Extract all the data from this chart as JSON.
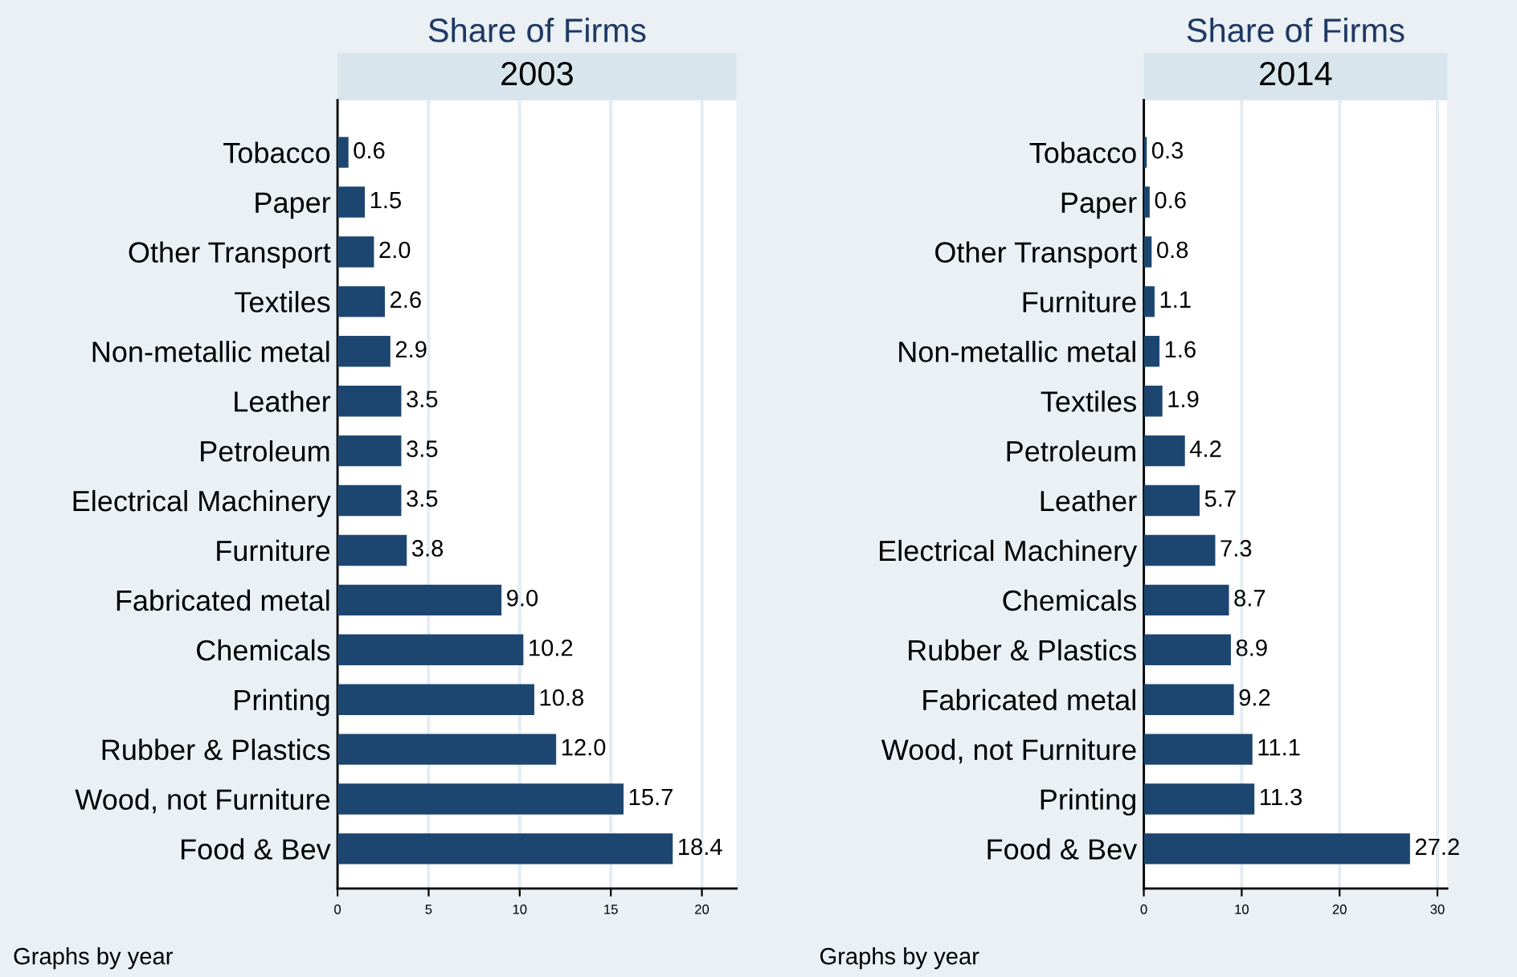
{
  "chart_data": [
    {
      "type": "bar",
      "orientation": "horizontal",
      "title": "Share of Firms",
      "subtitle": "2003",
      "categories": [
        "Tobacco",
        "Paper",
        "Other Transport",
        "Textiles",
        "Non-metallic metal",
        "Leather",
        "Petroleum",
        "Electrical Machinery",
        "Furniture",
        "Fabricated metal",
        "Chemicals",
        "Printing",
        "Rubber & Plastics",
        "Wood, not Furniture",
        "Food & Bev"
      ],
      "values": [
        0.6,
        1.5,
        2.0,
        2.6,
        2.9,
        3.5,
        3.5,
        3.5,
        3.8,
        9.0,
        10.2,
        10.8,
        12.0,
        15.7,
        18.4
      ],
      "color": "#1c4670",
      "xlim": [
        0,
        21.9
      ],
      "xticks": [
        0,
        5,
        10,
        15,
        20
      ],
      "grid": "x",
      "value_labels": [
        "0.6",
        "1.5",
        "2.0",
        "2.6",
        "2.9",
        "3.5",
        "3.5",
        "3.5",
        "3.8",
        "9.0",
        "10.2",
        "10.8",
        "12.0",
        "15.7",
        "18.4"
      ],
      "annotations": [
        "Graphs by year"
      ]
    },
    {
      "type": "bar",
      "orientation": "horizontal",
      "title": "Share of Firms",
      "subtitle": "2014",
      "categories": [
        "Tobacco",
        "Paper",
        "Other Transport",
        "Furniture",
        "Non-metallic metal",
        "Textiles",
        "Petroleum",
        "Leather",
        "Electrical Machinery",
        "Chemicals",
        "Rubber & Plastics",
        "Fabricated metal",
        "Wood, not Furniture",
        "Printing",
        "Food & Bev"
      ],
      "values": [
        0.3,
        0.6,
        0.8,
        1.1,
        1.6,
        1.9,
        4.2,
        5.7,
        7.3,
        8.7,
        8.9,
        9.2,
        11.1,
        11.3,
        27.2
      ],
      "color": "#1c4670",
      "xlim": [
        0,
        31
      ],
      "xticks": [
        0,
        10,
        20,
        30
      ],
      "grid": "x",
      "value_labels": [
        "0.3",
        "0.6",
        "0.8",
        "1.1",
        "1.6",
        "1.9",
        "4.2",
        "5.7",
        "7.3",
        "8.7",
        "8.9",
        "9.2",
        "11.1",
        "11.3",
        "27.2"
      ],
      "annotations": [
        "Graphs by year"
      ]
    }
  ]
}
